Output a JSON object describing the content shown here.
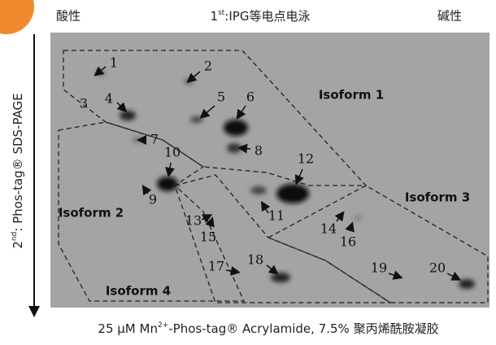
{
  "header": {
    "left": "酸性",
    "center": {
      "main": "1",
      "sup": "st",
      "rest": ":IPG等电点电泳"
    },
    "right": "碱性"
  },
  "side_label": {
    "main": "2",
    "sup": "nd",
    "rest": ": Phos-tag® SDS-PAGE"
  },
  "spots": [
    "1",
    "2",
    "3",
    "4",
    "5",
    "6",
    "7",
    "8",
    "9",
    "10",
    "11",
    "12",
    "13",
    "14",
    "15",
    "16",
    "17",
    "18",
    "19",
    "20"
  ],
  "isoforms": [
    "Isoform 1",
    "Isoform 2",
    "Isoform 3",
    "Isoform 4"
  ],
  "caption": {
    "a": "25 μM Mn",
    "sup": "2+",
    "b": "-Phos-tag® Acrylamide, 7.5% 聚丙烯酰胺凝胶"
  }
}
